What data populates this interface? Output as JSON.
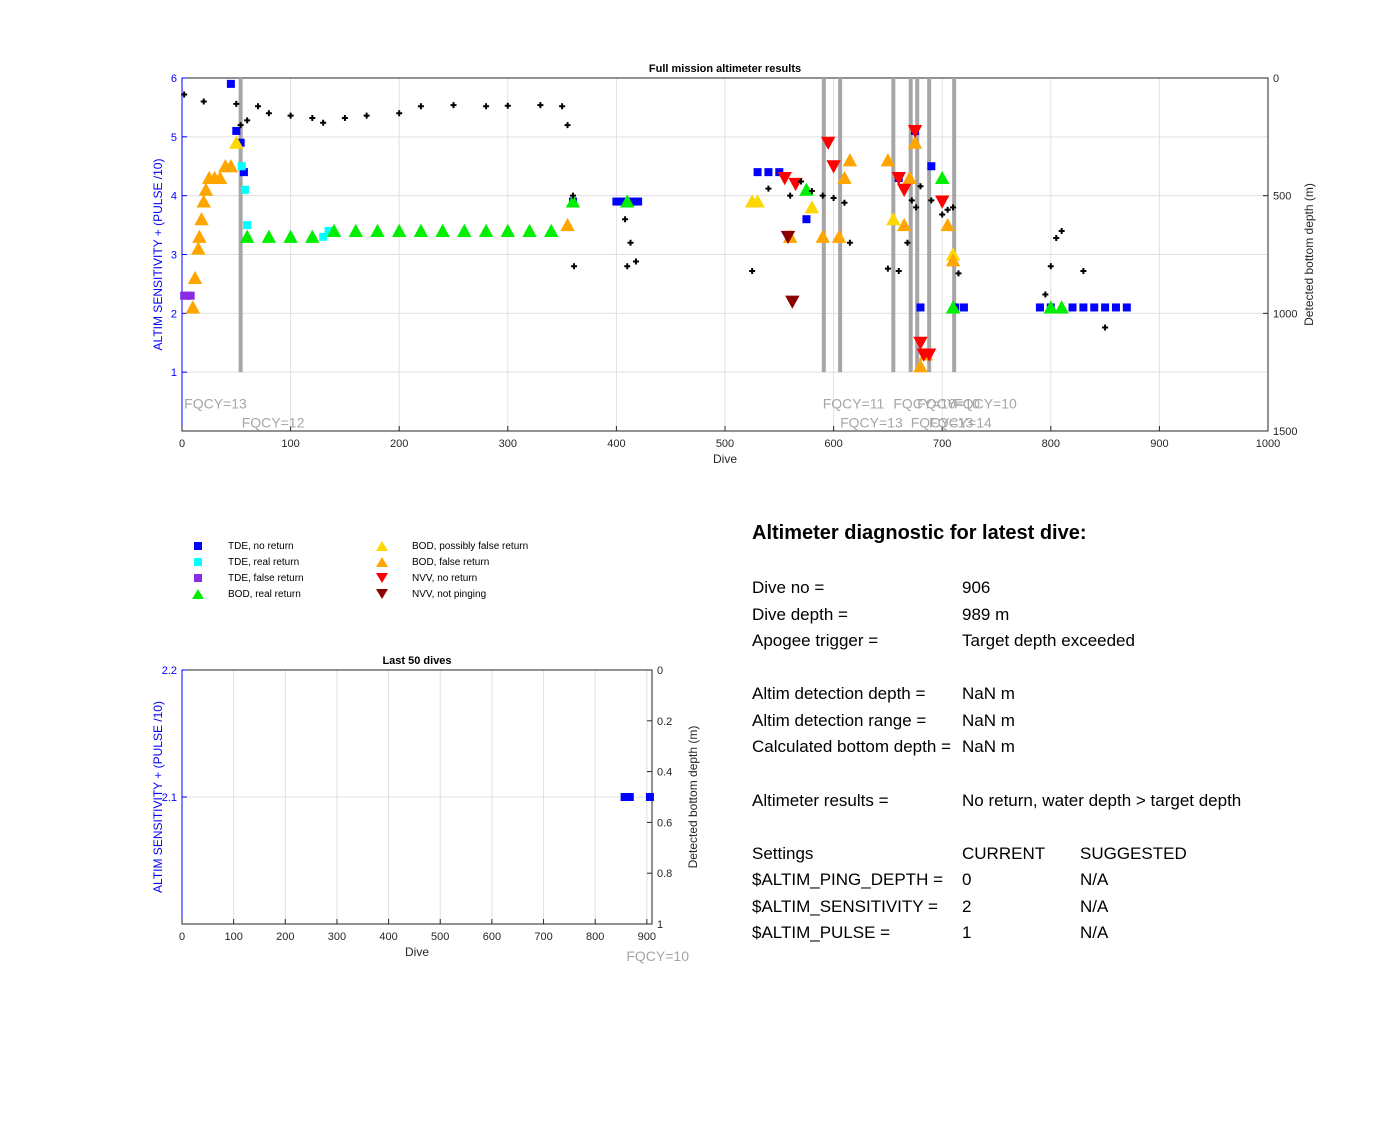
{
  "chart_data": [
    {
      "type": "scatter",
      "title": "Full mission altimeter results",
      "xlabel": "Dive",
      "ylabel": "ALTIM SENSITIVITY + (PULSE /10)",
      "ylabel_right": "Detected bottom depth (m)",
      "xlim": [
        0,
        1000
      ],
      "ylim": [
        0,
        6
      ],
      "ylim_right": [
        1500,
        0
      ],
      "xticks": [
        "0",
        "100",
        "200",
        "300",
        "400",
        "500",
        "600",
        "700",
        "800",
        "900",
        "1000"
      ],
      "yticks": [
        "1",
        "2",
        "3",
        "4",
        "5",
        "6"
      ],
      "yticks_right": [
        "0",
        "500",
        "1000",
        "1500"
      ],
      "grid": true,
      "frequency_changes": [
        {
          "dive": 54,
          "label": "FQCY=13",
          "label_dive": 2,
          "label_y": 0.45
        },
        {
          "dive": 54,
          "label": "FQCY=12",
          "label_dive": 55,
          "label_y": 0.13
        },
        {
          "dive": 591,
          "label": "FQCY=11",
          "label_dive": 590,
          "label_y": 0.45
        },
        {
          "dive": 606,
          "label": "FQCY=13",
          "label_dive": 606,
          "label_y": 0.13
        },
        {
          "dive": 655,
          "label": "FQCY=10",
          "label_dive": 655,
          "label_y": 0.45
        },
        {
          "dive": 671,
          "label": "FQCY=13",
          "label_dive": 671,
          "label_y": 0.13
        },
        {
          "dive": 677,
          "label": "FQCY=10",
          "label_dive": 677,
          "label_y": 0.45
        },
        {
          "dive": 688,
          "label": "FQCY=14",
          "label_dive": 688,
          "label_y": 0.13
        },
        {
          "dive": 711,
          "label": "FQCY=10",
          "label_dive": 711,
          "label_y": 0.45
        }
      ],
      "extra_grey_lines": [
        677,
        688,
        711,
        591
      ],
      "series": [
        {
          "name": "TDE, no return",
          "marker": "square",
          "color": "#0000ff",
          "points": [
            [
              45,
              5.9
            ],
            [
              50,
              5.1
            ],
            [
              54,
              4.9
            ],
            [
              57,
              4.4
            ],
            [
              360,
              3.9
            ],
            [
              400,
              3.9
            ],
            [
              405,
              3.9
            ],
            [
              415,
              3.9
            ],
            [
              420,
              3.9
            ],
            [
              530,
              4.4
            ],
            [
              540,
              4.4
            ],
            [
              550,
              4.4
            ],
            [
              575,
              3.6
            ],
            [
              660,
              4.3
            ],
            [
              675,
              5.1
            ],
            [
              680,
              2.1
            ],
            [
              690,
              4.5
            ],
            [
              712,
              2.1
            ],
            [
              720,
              2.1
            ],
            [
              790,
              2.1
            ],
            [
              800,
              2.1
            ],
            [
              820,
              2.1
            ],
            [
              830,
              2.1
            ],
            [
              840,
              2.1
            ],
            [
              850,
              2.1
            ],
            [
              860,
              2.1
            ],
            [
              870,
              2.1
            ]
          ]
        },
        {
          "name": "TDE, real return",
          "marker": "square",
          "color": "#00ffff",
          "points": [
            [
              55,
              4.5
            ],
            [
              58,
              4.1
            ],
            [
              60,
              3.5
            ],
            [
              130,
              3.3
            ],
            [
              135,
              3.4
            ]
          ]
        },
        {
          "name": "TDE, false return",
          "marker": "square",
          "color": "#8a2be2",
          "points": [
            [
              2,
              2.3
            ],
            [
              5,
              2.3
            ],
            [
              8,
              2.3
            ]
          ]
        },
        {
          "name": "BOD, real return",
          "marker": "triangle-up",
          "color": "#00ee00",
          "points": [
            [
              60,
              3.3
            ],
            [
              80,
              3.3
            ],
            [
              100,
              3.3
            ],
            [
              120,
              3.3
            ],
            [
              140,
              3.4
            ],
            [
              160,
              3.4
            ],
            [
              180,
              3.4
            ],
            [
              200,
              3.4
            ],
            [
              220,
              3.4
            ],
            [
              240,
              3.4
            ],
            [
              260,
              3.4
            ],
            [
              280,
              3.4
            ],
            [
              300,
              3.4
            ],
            [
              320,
              3.4
            ],
            [
              340,
              3.4
            ],
            [
              360,
              3.9
            ],
            [
              410,
              3.9
            ],
            [
              575,
              4.1
            ],
            [
              700,
              4.3
            ],
            [
              710,
              2.1
            ],
            [
              800,
              2.1
            ],
            [
              810,
              2.1
            ]
          ]
        },
        {
          "name": "BOD, possibly false return",
          "marker": "triangle-up",
          "color": "#ffd700",
          "points": [
            [
              50,
              4.9
            ],
            [
              525,
              3.9
            ],
            [
              530,
              3.9
            ],
            [
              580,
              3.8
            ],
            [
              655,
              3.6
            ],
            [
              710,
              3.0
            ]
          ]
        },
        {
          "name": "BOD, false return",
          "marker": "triangle-up",
          "color": "#ffa500",
          "points": [
            [
              10,
              2.1
            ],
            [
              12,
              2.6
            ],
            [
              15,
              3.1
            ],
            [
              16,
              3.3
            ],
            [
              18,
              3.6
            ],
            [
              20,
              3.9
            ],
            [
              22,
              4.1
            ],
            [
              25,
              4.3
            ],
            [
              30,
              4.3
            ],
            [
              35,
              4.3
            ],
            [
              40,
              4.5
            ],
            [
              45,
              4.5
            ],
            [
              355,
              3.5
            ],
            [
              560,
              3.3
            ],
            [
              590,
              3.3
            ],
            [
              605,
              3.3
            ],
            [
              610,
              4.3
            ],
            [
              615,
              4.6
            ],
            [
              650,
              4.6
            ],
            [
              665,
              3.5
            ],
            [
              670,
              4.3
            ],
            [
              675,
              4.9
            ],
            [
              680,
              1.1
            ],
            [
              685,
              1.3
            ],
            [
              705,
              3.5
            ],
            [
              710,
              2.9
            ]
          ]
        },
        {
          "name": "NVV, no return",
          "marker": "triangle-down",
          "color": "#ff0000",
          "points": [
            [
              555,
              4.3
            ],
            [
              565,
              4.2
            ],
            [
              595,
              4.9
            ],
            [
              600,
              4.5
            ],
            [
              660,
              4.3
            ],
            [
              665,
              4.1
            ],
            [
              675,
              5.1
            ],
            [
              680,
              1.5
            ],
            [
              683,
              1.3
            ],
            [
              688,
              1.3
            ],
            [
              700,
              3.9
            ]
          ]
        },
        {
          "name": "NVV, not pinging",
          "marker": "triangle-down",
          "color": "#8b0000",
          "points": [
            [
              558,
              3.3
            ],
            [
              562,
              2.2
            ]
          ]
        },
        {
          "name": "Detected bottom depth",
          "marker": "plus",
          "color": "#000000",
          "axis": "right",
          "points": [
            [
              2,
              70
            ],
            [
              20,
              100
            ],
            [
              50,
              110
            ],
            [
              54,
              200
            ],
            [
              60,
              180
            ],
            [
              70,
              120
            ],
            [
              80,
              150
            ],
            [
              100,
              160
            ],
            [
              120,
              170
            ],
            [
              130,
              190
            ],
            [
              150,
              170
            ],
            [
              170,
              160
            ],
            [
              200,
              150
            ],
            [
              220,
              120
            ],
            [
              250,
              115
            ],
            [
              280,
              120
            ],
            [
              300,
              118
            ],
            [
              330,
              115
            ],
            [
              350,
              120
            ],
            [
              355,
              200
            ],
            [
              360,
              500
            ],
            [
              361,
              800
            ],
            [
              408,
              600
            ],
            [
              410,
              800
            ],
            [
              413,
              700
            ],
            [
              418,
              780
            ],
            [
              525,
              820
            ],
            [
              540,
              470
            ],
            [
              560,
              500
            ],
            [
              570,
              440
            ],
            [
              580,
              480
            ],
            [
              590,
              500
            ],
            [
              600,
              510
            ],
            [
              610,
              530
            ],
            [
              615,
              700
            ],
            [
              650,
              810
            ],
            [
              660,
              820
            ],
            [
              668,
              700
            ],
            [
              672,
              520
            ],
            [
              676,
              550
            ],
            [
              680,
              460
            ],
            [
              690,
              520
            ],
            [
              700,
              580
            ],
            [
              705,
              560
            ],
            [
              710,
              550
            ],
            [
              715,
              830
            ],
            [
              795,
              920
            ],
            [
              800,
              800
            ],
            [
              805,
              680
            ],
            [
              810,
              650
            ],
            [
              830,
              820
            ],
            [
              850,
              1060
            ]
          ]
        }
      ]
    },
    {
      "type": "scatter",
      "title": "Last 50 dives",
      "xlabel": "Dive",
      "ylabel": "ALTIM SENSITIVITY + (PULSE /10)",
      "ylabel_right": "Detected bottom depth (m)",
      "xlim": [
        0,
        910
      ],
      "ylim": [
        2.0,
        2.2
      ],
      "ylim_right": [
        1,
        0
      ],
      "xticks": [
        "0",
        "100",
        "200",
        "300",
        "400",
        "500",
        "600",
        "700",
        "800",
        "900"
      ],
      "yticks": [
        "2.1",
        "2.2"
      ],
      "yticks_right": [
        "0",
        "0.2",
        "0.4",
        "0.6",
        "0.8",
        "1"
      ],
      "grid": true,
      "frequency_label": "FQCY=10",
      "series": [
        {
          "name": "TDE, no return",
          "marker": "square",
          "color": "#0000ff",
          "points": [
            [
              857,
              2.1
            ],
            [
              862,
              2.1
            ],
            [
              867,
              2.1
            ],
            [
              906,
              2.1
            ]
          ]
        }
      ]
    }
  ],
  "legend": [
    {
      "label": "TDE, no return",
      "marker": "square",
      "color": "#0000ff"
    },
    {
      "label": "TDE, real return",
      "marker": "square",
      "color": "#00ffff"
    },
    {
      "label": "TDE, false return",
      "marker": "square",
      "color": "#8a2be2"
    },
    {
      "label": "BOD, real return",
      "marker": "triangle-up",
      "color": "#00ee00"
    },
    {
      "label": "BOD, possibly false return",
      "marker": "triangle-up",
      "color": "#ffd700"
    },
    {
      "label": "BOD, false return",
      "marker": "triangle-up",
      "color": "#ffa500"
    },
    {
      "label": "NVV, no return",
      "marker": "triangle-down",
      "color": "#ff0000"
    },
    {
      "label": "NVV, not pinging",
      "marker": "triangle-down",
      "color": "#8b0000"
    }
  ],
  "diagnostic": {
    "title": "Altimeter diagnostic for latest dive:",
    "dive_no_label": "Dive no =",
    "dive_no": "906",
    "dive_depth_label": "Dive depth =",
    "dive_depth": "989 m",
    "apogee_label": "Apogee trigger =",
    "apogee": "Target depth exceeded",
    "detect_depth_label": "Altim detection depth =",
    "detect_depth": "NaN m",
    "detect_range_label": "Altim detection range =",
    "detect_range": "NaN m",
    "calc_depth_label": "Calculated bottom depth =",
    "calc_depth": "NaN m",
    "results_label": "Altimeter results =",
    "results": "No return, water depth > target depth",
    "settings_label": "Settings",
    "current_label": "CURRENT",
    "suggested_label": "SUGGESTED",
    "settings": [
      {
        "name": "$ALTIM_PING_DEPTH =",
        "current": "0",
        "suggested": "N/A"
      },
      {
        "name": "$ALTIM_SENSITIVITY =",
        "current": "2",
        "suggested": "N/A"
      },
      {
        "name": "$ALTIM_PULSE =",
        "current": "1",
        "suggested": "N/A"
      }
    ]
  },
  "colors": {
    "axis_left": "#0000ff",
    "grid": "#e0e0e0",
    "fqcy_line": "#a6a6a6",
    "fqcy_text": "#a6a6a6"
  }
}
